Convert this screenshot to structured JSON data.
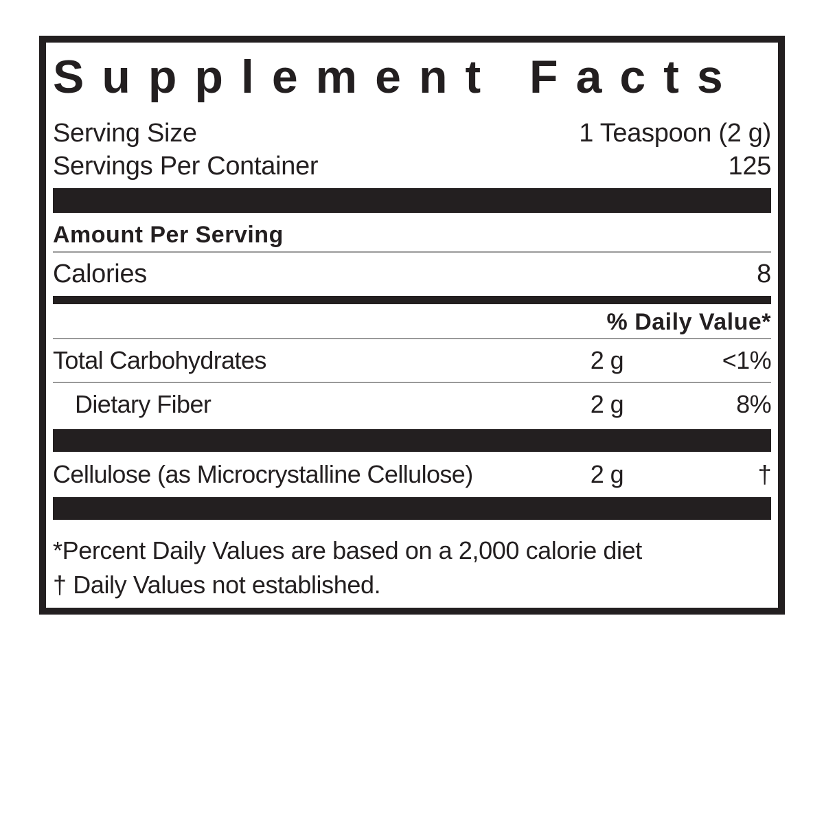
{
  "colors": {
    "ink": "#231f20",
    "rule": "#9a9a9a",
    "background": "#ffffff"
  },
  "panel": {
    "title": "Supplement Facts",
    "serving": {
      "size_label": "Serving Size",
      "size_value": "1 Teaspoon (2 g)",
      "per_container_label": "Servings Per Container",
      "per_container_value": "125"
    },
    "amount_per_serving_heading": "Amount Per Serving",
    "calories": {
      "label": "Calories",
      "value": "8"
    },
    "daily_value_heading": "% Daily Value*",
    "nutrients": [
      {
        "name": "Total Carbohydrates",
        "amount": "2 g",
        "daily_value": "<1%"
      },
      {
        "name": "Dietary Fiber",
        "amount": "2 g",
        "daily_value": "8%"
      },
      {
        "name": "Cellulose (as Microcrystalline Cellulose)",
        "amount": "2 g",
        "daily_value": "†"
      }
    ],
    "footnotes": [
      "*Percent Daily Values are based on a 2,000 calorie diet",
      "† Daily Values not established."
    ]
  }
}
